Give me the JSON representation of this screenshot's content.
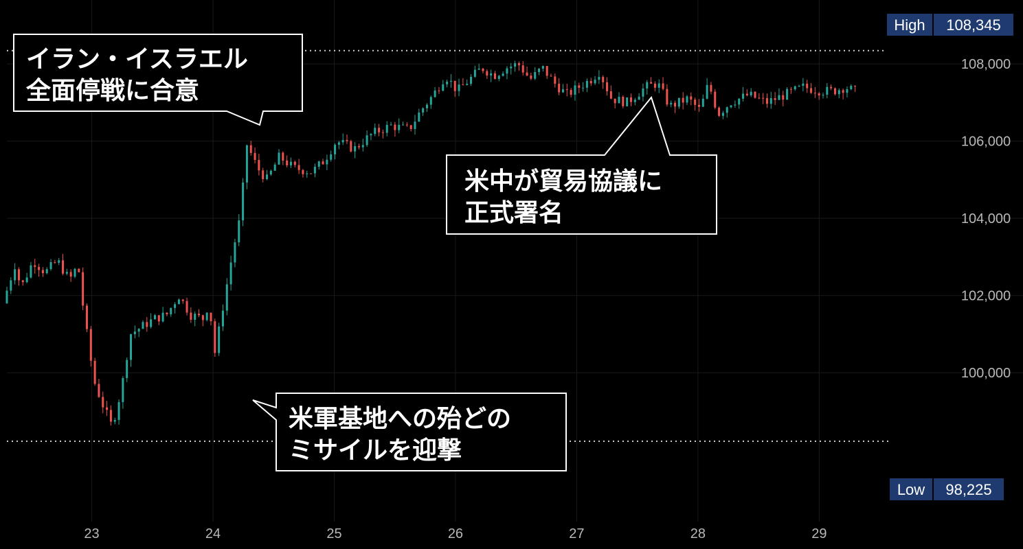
{
  "chart_data": {
    "type": "candlestick",
    "x_tick_labels": [
      "23",
      "24",
      "25",
      "26",
      "27",
      "28",
      "29"
    ],
    "y_tick_labels": [
      "100,000",
      "102,000",
      "104,000",
      "106,000",
      "108,000"
    ],
    "y_ticks": [
      100000,
      102000,
      104000,
      106000,
      108000
    ],
    "ylim": [
      96500,
      109300
    ],
    "xlim": [
      22.3,
      29.95
    ],
    "high": {
      "label": "High",
      "value": "108,345",
      "y": 108345
    },
    "low": {
      "label": "Low",
      "value": "98,225",
      "y": 98225
    },
    "colors": {
      "up": "#26a69a",
      "down": "#ef5350",
      "grid": "#1a1a1a",
      "badge": "#1e3a6e",
      "axis_text": "#b8b8b8"
    },
    "ohlc_path": [
      [
        22.3,
        101.8
      ],
      [
        22.4,
        102.8
      ],
      [
        22.45,
        102.2
      ],
      [
        22.55,
        102.9
      ],
      [
        22.65,
        102.6
      ],
      [
        22.75,
        102.9
      ],
      [
        22.85,
        102.4
      ],
      [
        22.92,
        102.8
      ],
      [
        22.97,
        101.5
      ],
      [
        23.05,
        99.8
      ],
      [
        23.12,
        99.2
      ],
      [
        23.2,
        98.6
      ],
      [
        23.28,
        99.6
      ],
      [
        23.35,
        101.0
      ],
      [
        23.45,
        101.2
      ],
      [
        23.55,
        101.4
      ],
      [
        23.65,
        101.5
      ],
      [
        23.75,
        102.0
      ],
      [
        23.85,
        101.5
      ],
      [
        23.95,
        101.4
      ],
      [
        24.0,
        101.8
      ],
      [
        24.05,
        100.5
      ],
      [
        24.12,
        101.8
      ],
      [
        24.2,
        103.2
      ],
      [
        24.27,
        104.2
      ],
      [
        24.3,
        106.0
      ],
      [
        24.4,
        105.3
      ],
      [
        24.48,
        105.0
      ],
      [
        24.58,
        105.6
      ],
      [
        24.7,
        105.3
      ],
      [
        24.85,
        105.2
      ],
      [
        24.95,
        105.5
      ],
      [
        25.05,
        106.0
      ],
      [
        25.2,
        105.8
      ],
      [
        25.35,
        106.2
      ],
      [
        25.5,
        106.4
      ],
      [
        25.65,
        106.3
      ],
      [
        25.75,
        106.8
      ],
      [
        25.85,
        107.2
      ],
      [
        25.95,
        107.7
      ],
      [
        26.05,
        107.3
      ],
      [
        26.15,
        107.6
      ],
      [
        26.25,
        107.9
      ],
      [
        26.35,
        107.7
      ],
      [
        26.45,
        107.9
      ],
      [
        26.55,
        108.0
      ],
      [
        26.65,
        107.6
      ],
      [
        26.75,
        107.9
      ],
      [
        26.85,
        107.5
      ],
      [
        26.95,
        107.2
      ],
      [
        27.05,
        107.4
      ],
      [
        27.15,
        107.6
      ],
      [
        27.22,
        107.8
      ],
      [
        27.32,
        107.1
      ],
      [
        27.45,
        107.0
      ],
      [
        27.6,
        107.4
      ],
      [
        27.7,
        107.5
      ],
      [
        27.8,
        106.9
      ],
      [
        27.95,
        107.1
      ],
      [
        28.05,
        106.8
      ],
      [
        28.12,
        107.5
      ],
      [
        28.2,
        106.7
      ],
      [
        28.3,
        107.0
      ],
      [
        28.45,
        107.2
      ],
      [
        28.6,
        107.0
      ],
      [
        28.75,
        107.2
      ],
      [
        28.9,
        107.4
      ],
      [
        29.05,
        107.3
      ],
      [
        29.15,
        107.3
      ],
      [
        29.25,
        107.4
      ],
      [
        29.32,
        107.3
      ]
    ]
  },
  "annotations": [
    {
      "line1": "イラン・イスラエル",
      "line2": "全面停戦に合意"
    },
    {
      "line1": "米中が貿易協議に",
      "line2": "正式署名"
    },
    {
      "line1": "米軍基地への殆どの",
      "line2": "ミサイルを迎撃"
    }
  ]
}
